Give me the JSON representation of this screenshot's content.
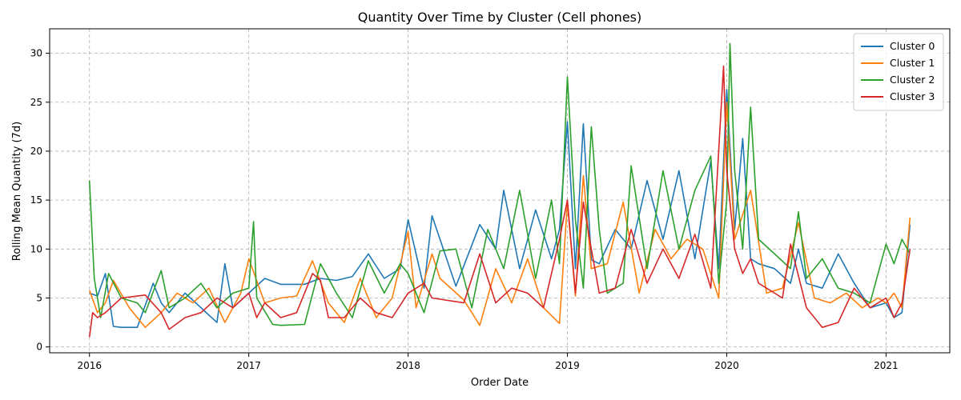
{
  "chart_data": {
    "type": "line",
    "title": "Quantity Over Time by Cluster (Cell phones)",
    "xlabel": "Order Date",
    "ylabel": "Rolling Mean Quantity (7d)",
    "x_ticks": [
      "2016",
      "2017",
      "2018",
      "2019",
      "2020",
      "2021"
    ],
    "y_ticks": [
      0,
      5,
      10,
      15,
      20,
      25,
      30
    ],
    "xlim": [
      2015.75,
      2021.4
    ],
    "ylim": [
      -0.6,
      32.5
    ],
    "grid": true,
    "legend_position": "top-right",
    "series": [
      {
        "name": "Cluster 0",
        "color": "#1f77b4",
        "x": [
          2016.0,
          2016.05,
          2016.1,
          2016.15,
          2016.2,
          2016.3,
          2016.4,
          2016.45,
          2016.5,
          2016.6,
          2016.7,
          2016.8,
          2016.85,
          2016.9,
          2017.0,
          2017.1,
          2017.2,
          2017.35,
          2017.45,
          2017.55,
          2017.65,
          2017.75,
          2017.85,
          2017.95,
          2018.0,
          2018.1,
          2018.15,
          2018.3,
          2018.45,
          2018.55,
          2018.6,
          2018.7,
          2018.8,
          2018.9,
          2018.95,
          2019.0,
          2019.05,
          2019.1,
          2019.15,
          2019.2,
          2019.3,
          2019.4,
          2019.5,
          2019.6,
          2019.7,
          2019.8,
          2019.9,
          2019.95,
          2020.0,
          2020.05,
          2020.1,
          2020.15,
          2020.2,
          2020.3,
          2020.4,
          2020.45,
          2020.5,
          2020.6,
          2020.7,
          2020.8,
          2020.9,
          2021.0,
          2021.05,
          2021.1,
          2021.15
        ],
        "values": [
          5.5,
          5.2,
          7.5,
          2.1,
          2.0,
          2.0,
          6.5,
          4.5,
          3.5,
          5.5,
          4.0,
          2.5,
          8.5,
          4.0,
          5.5,
          7.0,
          6.4,
          6.4,
          7.0,
          6.8,
          7.2,
          9.5,
          7.0,
          8.0,
          13.0,
          6.0,
          13.4,
          6.2,
          12.5,
          10.0,
          16.0,
          8.0,
          14.0,
          9.0,
          12.0,
          23.0,
          8.0,
          22.8,
          8.9,
          8.5,
          12.0,
          10.0,
          17.0,
          11.0,
          18.0,
          9.0,
          19.0,
          8.0,
          26.3,
          12.0,
          21.3,
          9.0,
          8.5,
          8.0,
          6.5,
          10.0,
          6.5,
          6.0,
          9.5,
          6.5,
          4.0,
          4.5,
          3.0,
          3.5,
          12.5
        ]
      },
      {
        "name": "Cluster 1",
        "color": "#ff7f0e",
        "x": [
          2016.0,
          2016.05,
          2016.1,
          2016.15,
          2016.25,
          2016.35,
          2016.45,
          2016.55,
          2016.65,
          2016.75,
          2016.85,
          2016.95,
          2017.0,
          2017.1,
          2017.2,
          2017.3,
          2017.4,
          2017.5,
          2017.6,
          2017.7,
          2017.8,
          2017.9,
          2018.0,
          2018.05,
          2018.15,
          2018.2,
          2018.35,
          2018.45,
          2018.55,
          2018.65,
          2018.75,
          2018.85,
          2018.95,
          2019.0,
          2019.05,
          2019.1,
          2019.15,
          2019.25,
          2019.35,
          2019.45,
          2019.55,
          2019.65,
          2019.75,
          2019.85,
          2019.95,
          2020.0,
          2020.05,
          2020.15,
          2020.25,
          2020.35,
          2020.45,
          2020.55,
          2020.65,
          2020.75,
          2020.85,
          2020.95,
          2021.0,
          2021.05,
          2021.1,
          2021.15
        ],
        "values": [
          5.8,
          3.5,
          4.5,
          6.8,
          4.0,
          2.0,
          3.5,
          5.5,
          4.5,
          6.0,
          2.5,
          5.5,
          9.0,
          4.5,
          5.0,
          5.2,
          8.8,
          4.5,
          2.5,
          7.0,
          3.0,
          5.0,
          11.8,
          4.0,
          9.5,
          7.0,
          4.8,
          2.2,
          8.0,
          4.5,
          9.0,
          4.0,
          2.4,
          14.8,
          5.2,
          17.5,
          8.0,
          8.5,
          14.8,
          5.5,
          12.0,
          9.0,
          11.0,
          10.0,
          5.0,
          25.0,
          11.0,
          16.0,
          5.5,
          6.0,
          12.7,
          5.0,
          4.5,
          5.5,
          4.0,
          5.0,
          4.5,
          5.5,
          4.0,
          13.2
        ]
      },
      {
        "name": "Cluster 2",
        "color": "#2ca02c",
        "x": [
          2016.0,
          2016.03,
          2016.07,
          2016.12,
          2016.2,
          2016.3,
          2016.35,
          2016.45,
          2016.5,
          2016.6,
          2016.7,
          2016.8,
          2016.9,
          2017.0,
          2017.03,
          2017.05,
          2017.15,
          2017.2,
          2017.35,
          2017.45,
          2017.55,
          2017.65,
          2017.75,
          2017.85,
          2017.95,
          2018.0,
          2018.1,
          2018.2,
          2018.3,
          2018.4,
          2018.5,
          2018.6,
          2018.7,
          2018.8,
          2018.9,
          2018.95,
          2019.0,
          2019.05,
          2019.1,
          2019.15,
          2019.2,
          2019.25,
          2019.35,
          2019.4,
          2019.5,
          2019.6,
          2019.7,
          2019.8,
          2019.9,
          2019.95,
          2020.0,
          2020.02,
          2020.05,
          2020.1,
          2020.15,
          2020.2,
          2020.3,
          2020.4,
          2020.45,
          2020.5,
          2020.6,
          2020.7,
          2020.8,
          2020.9,
          2021.0,
          2021.05,
          2021.1,
          2021.15
        ],
        "values": [
          17.0,
          7.0,
          3.0,
          7.5,
          5.0,
          4.5,
          3.5,
          7.8,
          4.0,
          5.0,
          6.5,
          4.0,
          5.5,
          6.0,
          12.8,
          5.0,
          2.3,
          2.2,
          2.3,
          8.5,
          5.5,
          3.0,
          8.8,
          5.5,
          8.5,
          7.5,
          3.5,
          9.8,
          10.0,
          4.0,
          12.0,
          8.0,
          16.0,
          7.0,
          15.0,
          8.5,
          27.6,
          13.0,
          6.0,
          22.5,
          12.0,
          5.5,
          6.5,
          18.5,
          8.0,
          18.0,
          10.0,
          16.0,
          19.5,
          6.5,
          15.0,
          31.0,
          18.0,
          10.0,
          24.5,
          11.0,
          9.5,
          8.0,
          13.8,
          7.0,
          9.0,
          6.0,
          5.5,
          4.5,
          10.5,
          8.5,
          11.0,
          9.5
        ]
      },
      {
        "name": "Cluster 3",
        "color": "#d62728",
        "x": [
          2016.0,
          2016.02,
          2016.05,
          2016.1,
          2016.2,
          2016.35,
          2016.45,
          2016.5,
          2016.6,
          2016.7,
          2016.8,
          2016.9,
          2017.0,
          2017.05,
          2017.1,
          2017.2,
          2017.3,
          2017.4,
          2017.45,
          2017.5,
          2017.6,
          2017.7,
          2017.8,
          2017.9,
          2018.0,
          2018.1,
          2018.15,
          2018.35,
          2018.45,
          2018.55,
          2018.65,
          2018.75,
          2018.85,
          2018.95,
          2019.0,
          2019.05,
          2019.1,
          2019.15,
          2019.2,
          2019.3,
          2019.4,
          2019.5,
          2019.6,
          2019.7,
          2019.8,
          2019.9,
          2019.98,
          2020.0,
          2020.05,
          2020.1,
          2020.15,
          2020.2,
          2020.35,
          2020.4,
          2020.5,
          2020.6,
          2020.7,
          2020.8,
          2020.9,
          2021.0,
          2021.05,
          2021.1,
          2021.15
        ],
        "values": [
          1.0,
          3.5,
          3.0,
          3.5,
          5.0,
          5.3,
          3.5,
          1.8,
          3.0,
          3.5,
          5.0,
          4.0,
          5.5,
          3.0,
          4.5,
          3.0,
          3.5,
          7.5,
          6.8,
          3.0,
          3.0,
          5.0,
          3.5,
          3.0,
          5.5,
          6.5,
          5.0,
          4.5,
          9.5,
          4.5,
          6.0,
          5.5,
          4.0,
          11.0,
          15.0,
          5.5,
          14.8,
          10.0,
          5.5,
          6.0,
          12.0,
          6.5,
          10.0,
          7.0,
          11.5,
          6.0,
          28.7,
          18.0,
          10.0,
          7.5,
          9.0,
          6.5,
          5.0,
          10.5,
          4.0,
          2.0,
          2.5,
          6.0,
          4.0,
          5.0,
          3.0,
          4.5,
          10.0
        ]
      }
    ]
  }
}
